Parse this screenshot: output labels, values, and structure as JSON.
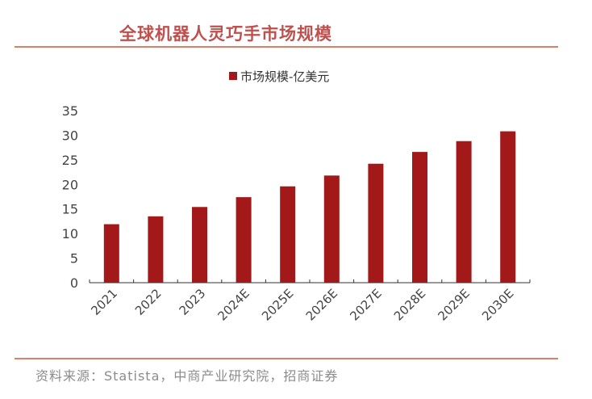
{
  "title": "全球机器人灵巧手市场规模",
  "source": "资料来源：Statista，中商产业研究院，招商证券",
  "chart_data": {
    "type": "bar",
    "categories": [
      "2021",
      "2022",
      "2023",
      "2024E",
      "2025E",
      "2026E",
      "2027E",
      "2028E",
      "2029E",
      "2030E"
    ],
    "series": [
      {
        "name": "市场规模-亿美元",
        "values": [
          11.9,
          13.5,
          15.4,
          17.4,
          19.6,
          21.8,
          24.2,
          26.6,
          28.8,
          30.8
        ]
      }
    ],
    "ylim": [
      0,
      35
    ],
    "yticks": [
      0,
      5,
      10,
      15,
      20,
      25,
      30,
      35
    ],
    "legend": "top",
    "grid": false,
    "colors": {
      "bar": "#a31818",
      "title": "#c0504d"
    }
  }
}
